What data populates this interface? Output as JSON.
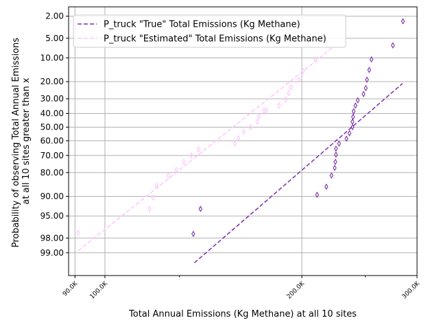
{
  "chart_data": {
    "type": "scatter",
    "xlabel": "Total Annual Emissions (Kg Methane) at all 10 sites",
    "ylabel_lines": [
      "Probability of observing Total Annual Emissions",
      "at all 10 sites greater than x"
    ],
    "x_scale": "log",
    "y_scale": "probit (percent exceedance, inverted)",
    "xlim": [
      88000,
      300000
    ],
    "ylim": [
      99.7,
      1.3
    ],
    "grid": true,
    "legend_position": "top-left",
    "x_ticks": [
      {
        "value": 90000,
        "label": "90.0K"
      },
      {
        "value": 100000,
        "label": "100.0K"
      },
      {
        "value": 200000,
        "label": "200.0K"
      },
      {
        "value": 300000,
        "label": "300.0K"
      }
    ],
    "x_minor_ticks": [
      130000,
      250000
    ],
    "y_ticks": [
      {
        "value": 2,
        "label": "2.00"
      },
      {
        "value": 5,
        "label": "5.00"
      },
      {
        "value": 10,
        "label": "10.00"
      },
      {
        "value": 20,
        "label": "20.00"
      },
      {
        "value": 30,
        "label": "30.00"
      },
      {
        "value": 40,
        "label": "40.00"
      },
      {
        "value": 50,
        "label": "50.00"
      },
      {
        "value": 60,
        "label": "60.00"
      },
      {
        "value": 70,
        "label": "70.00"
      },
      {
        "value": 80,
        "label": "80.00"
      },
      {
        "value": 90,
        "label": "90.00"
      },
      {
        "value": 95,
        "label": "95.00"
      },
      {
        "value": 98,
        "label": "98.00"
      },
      {
        "value": 99,
        "label": "99.00"
      }
    ],
    "series": [
      {
        "name": "P_truck \"True\" Total Emissions (Kg Methane)",
        "color": "#7b2fa8",
        "fit_line": {
          "x": [
            137000,
            285000
          ],
          "y": [
            99.4,
            21
          ]
        },
        "points": [
          {
            "x": 136500,
            "y": 97.6
          },
          {
            "x": 140000,
            "y": 93.5
          },
          {
            "x": 211000,
            "y": 89.5
          },
          {
            "x": 218000,
            "y": 86.5
          },
          {
            "x": 222000,
            "y": 81.5
          },
          {
            "x": 224500,
            "y": 77.5
          },
          {
            "x": 225000,
            "y": 74.0
          },
          {
            "x": 225500,
            "y": 69.5
          },
          {
            "x": 225500,
            "y": 65.5
          },
          {
            "x": 228000,
            "y": 62.0
          },
          {
            "x": 234000,
            "y": 58.5
          },
          {
            "x": 236500,
            "y": 54.5
          },
          {
            "x": 239000,
            "y": 50.0
          },
          {
            "x": 239000,
            "y": 46.0
          },
          {
            "x": 239500,
            "y": 42.5
          },
          {
            "x": 240000,
            "y": 38.5
          },
          {
            "x": 241500,
            "y": 34.5
          },
          {
            "x": 243500,
            "y": 31.0
          },
          {
            "x": 248500,
            "y": 27.0
          },
          {
            "x": 250500,
            "y": 23.5
          },
          {
            "x": 251500,
            "y": 19.0
          },
          {
            "x": 253500,
            "y": 14.5
          },
          {
            "x": 255500,
            "y": 10.5
          },
          {
            "x": 275500,
            "y": 6.5
          },
          {
            "x": 285500,
            "y": 2.5
          }
        ]
      },
      {
        "name": "P_truck \"Estimated\" Total Emissions (Kg Methane)",
        "color": "#ffc4ff",
        "fit_line": {
          "x": [
            91000,
            225000
          ],
          "y": [
            98.9,
            6.5
          ]
        },
        "points": [
          {
            "x": 91000,
            "y": 97.5
          },
          {
            "x": 117000,
            "y": 93.5
          },
          {
            "x": 118500,
            "y": 90.5
          },
          {
            "x": 120000,
            "y": 86.0
          },
          {
            "x": 125000,
            "y": 81.5
          },
          {
            "x": 128500,
            "y": 78.5
          },
          {
            "x": 132000,
            "y": 74.0
          },
          {
            "x": 135500,
            "y": 70.0
          },
          {
            "x": 139000,
            "y": 66.0
          },
          {
            "x": 158000,
            "y": 62.0
          },
          {
            "x": 160000,
            "y": 58.0
          },
          {
            "x": 163000,
            "y": 53.5
          },
          {
            "x": 167000,
            "y": 50.0
          },
          {
            "x": 171000,
            "y": 46.0
          },
          {
            "x": 172000,
            "y": 42.0
          },
          {
            "x": 175000,
            "y": 38.0
          },
          {
            "x": 176500,
            "y": 38.0
          },
          {
            "x": 184500,
            "y": 34.5
          },
          {
            "x": 189000,
            "y": 30.5
          },
          {
            "x": 191000,
            "y": 26.5
          },
          {
            "x": 192500,
            "y": 23.0
          },
          {
            "x": 198000,
            "y": 19.0
          },
          {
            "x": 201000,
            "y": 15.0
          },
          {
            "x": 210000,
            "y": 10.5
          }
        ]
      }
    ]
  }
}
